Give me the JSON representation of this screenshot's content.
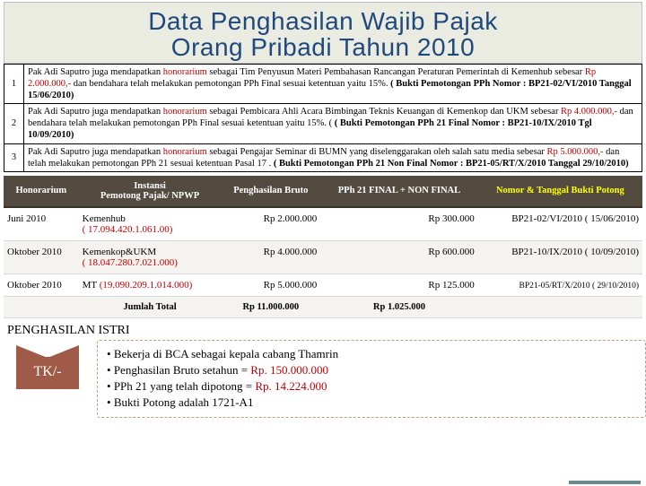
{
  "title": {
    "line1": "Data Penghasilan Wajib Pajak",
    "line2": "Orang Pribadi Tahun 2010"
  },
  "desc_rows": [
    {
      "no": "1",
      "pre": "Pak Adi Saputro juga mendapatkan ",
      "hon": "honorarium",
      "mid": " sebagai Tim Penyusun Materi Pembahasan Rancangan Peraturan Pemerintah di Kemenhub sebesar ",
      "amount": "Rp 2.000.000,-",
      "post1": " dan bendahara telah melakukan pemotongan PPh Final sesuai ketentuan yaitu 15%. ",
      "bukti": "( Bukti Pemotongan PPh Nomor : BP21-02/VI/2010 Tanggal 15/06/2010)"
    },
    {
      "no": "2",
      "pre": "Pak Adi Saputro juga mendapatkan ",
      "hon": "honorarium",
      "mid": " sebagai Pembicara Ahli Acara Bimbingan Teknis Keuangan di Kemenkop dan UKM sebesar ",
      "amount": "Rp 4.000.000,-",
      "post1": " dan bendahara telah melakukan pemotongan PPh Final sesuai ketentuan yaitu 15%. ( ",
      "bukti": "( Bukti Pemotongan PPh 21 Final Nomor : BP21-10/IX/2010 Tgl 10/09/2010)"
    },
    {
      "no": "3",
      "pre": "Pak Adi Saputro juga mendapatkan ",
      "hon": "honorarium",
      "mid": " sebagai Pengajar Seminar di BUMN yang diselenggarakan oleh salah satu media  sebesar ",
      "amount": "Rp 5.000.000,-",
      "post1": " dan telah melakukan pemotongan PPh 21 sesuai ketentuan Pasal 17 . ",
      "bukti": "( Bukti Pemotongan PPh 21 Non Final Nomor : BP21-05/RT/X/2010  Tanggal 29/10/2010)"
    }
  ],
  "summary": {
    "headers": {
      "h1": "Honorarium",
      "h2": "Instansi\nPemotong Pajak/ NPWP",
      "h3": "Penghasilan Bruto",
      "h4": "PPh 21 FINAL + NON FINAL",
      "h5": "Nomor & Tanggal Bukti Potong"
    },
    "rows": [
      {
        "period": "Juni 2010",
        "inst": "Kemenhub",
        "inst_red": "( 17.094.420.1.061.00)",
        "bruto": "Rp 2.000.000",
        "pph": "Rp 300.000",
        "bukti": "BP21-02/VI/2010 ( 15/06/2010)"
      },
      {
        "period": "Oktober 2010",
        "inst": "Kemenkop&UKM",
        "inst_red": "( 18.047.280.7.021.000)",
        "bruto": "Rp 4.000.000",
        "pph": "Rp 600.000",
        "bukti": "BP21-10/IX/2010 ( 10/09/2010)"
      },
      {
        "period": "Oktober 2010",
        "inst": "MT",
        "inst_red": "(19.090.209.1.014.000)",
        "bruto": "Rp 5.000.000",
        "pph": "Rp 125.000",
        "bukti": "BP21-05/RT/X/2010 ( 29/10/2010)"
      }
    ],
    "total": {
      "label": "Jumlah Total",
      "bruto": "Rp 11.000.000",
      "pph": "Rp 1.025.000"
    }
  },
  "istri": {
    "header": "PENGHASILAN ISTRI",
    "badge": "TK/-",
    "l1a": "Bekerja di BCA sebagai kepala cabang Thamrin",
    "l2a": "Penghasilan Bruto setahun = ",
    "l2b": "Rp. 150.000.000",
    "l3a": "PPh 21 yang telah dipotong = ",
    "l3b": "Rp. 14.224.000",
    "l4a": "Bukti Potong adalah 1721-A1"
  }
}
